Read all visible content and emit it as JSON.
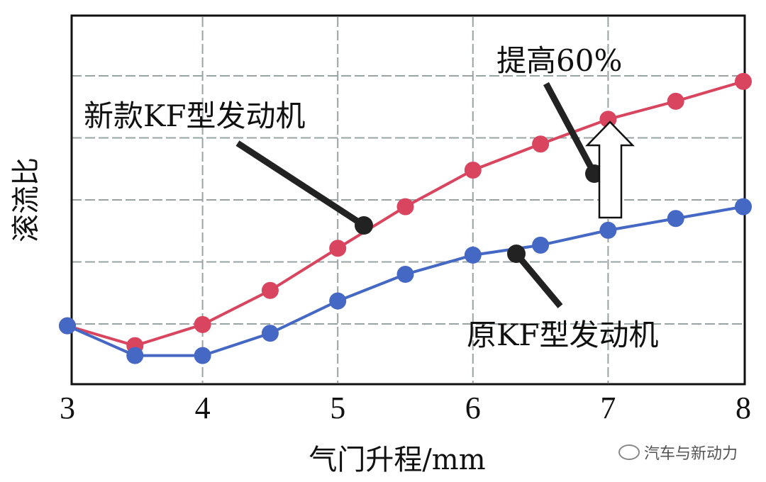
{
  "chart_data": {
    "type": "line",
    "xlabel": "气门升程/mm",
    "ylabel": "滚流比",
    "xlim": [
      3,
      8
    ],
    "ylim": [
      0,
      6
    ],
    "xticks": [
      "3",
      "4",
      "5",
      "6",
      "7",
      "8"
    ],
    "yticks_labeled": false,
    "grid": true,
    "grid_style": "dashed",
    "x": [
      3,
      3.5,
      4,
      4.5,
      5,
      5.5,
      6,
      6.5,
      7,
      7.5,
      8
    ],
    "series": [
      {
        "name": "新款KF型发动机",
        "color": "#d9455f",
        "values": [
          0.97,
          0.65,
          0.99,
          1.54,
          2.22,
          2.89,
          3.48,
          3.9,
          4.3,
          4.59,
          4.91
        ]
      },
      {
        "name": "原KF型发动机",
        "color": "#4468c4",
        "values": [
          0.97,
          0.49,
          0.49,
          0.85,
          1.37,
          1.8,
          2.11,
          2.27,
          2.51,
          2.7,
          2.89
        ]
      }
    ],
    "annotations": {
      "new_engine": "新款KF型发动机",
      "old_engine": "原KF型发动机",
      "increase": "提高60%"
    }
  },
  "watermark": "汽车与新动力"
}
